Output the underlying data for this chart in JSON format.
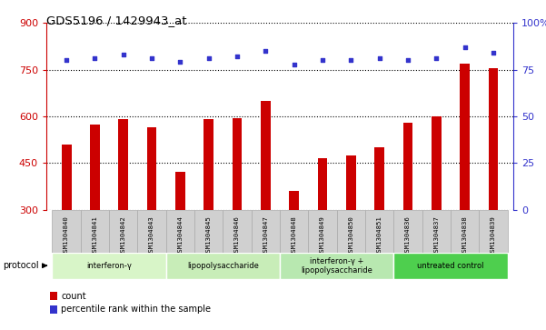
{
  "title": "GDS5196 / 1429943_at",
  "samples": [
    "GSM1304840",
    "GSM1304841",
    "GSM1304842",
    "GSM1304843",
    "GSM1304844",
    "GSM1304845",
    "GSM1304846",
    "GSM1304847",
    "GSM1304848",
    "GSM1304849",
    "GSM1304850",
    "GSM1304851",
    "GSM1304836",
    "GSM1304837",
    "GSM1304838",
    "GSM1304839"
  ],
  "counts": [
    510,
    575,
    590,
    565,
    420,
    590,
    595,
    650,
    360,
    465,
    475,
    500,
    580,
    600,
    770,
    755
  ],
  "percentile_ranks": [
    80,
    81,
    83,
    81,
    79,
    81,
    82,
    85,
    78,
    80,
    80,
    81,
    80,
    81,
    87,
    84
  ],
  "groups": [
    {
      "label": "interferon-γ",
      "start": 0,
      "end": 4,
      "color": "#d8f5c8"
    },
    {
      "label": "lipopolysaccharide",
      "start": 4,
      "end": 8,
      "color": "#c8edb8"
    },
    {
      "label": "interferon-γ +\nlipopolysaccharide",
      "start": 8,
      "end": 12,
      "color": "#b8e8b0"
    },
    {
      "label": "untreated control",
      "start": 12,
      "end": 16,
      "color": "#4ecf4e"
    }
  ],
  "ylim_left": [
    300,
    900
  ],
  "ylim_right": [
    0,
    100
  ],
  "yticks_left": [
    300,
    450,
    600,
    750,
    900
  ],
  "yticks_right": [
    0,
    25,
    50,
    75,
    100
  ],
  "bar_color": "#cc0000",
  "dot_color": "#3333cc",
  "bg_color": "#ffffff",
  "plot_bg": "#ffffff",
  "label_color_left": "#cc0000",
  "label_color_right": "#3333cc",
  "legend_count_label": "count",
  "legend_pct_label": "percentile rank within the sample",
  "bar_width": 0.35,
  "sample_cell_color": "#d0d0d0",
  "sample_cell_edge": "#aaaaaa"
}
